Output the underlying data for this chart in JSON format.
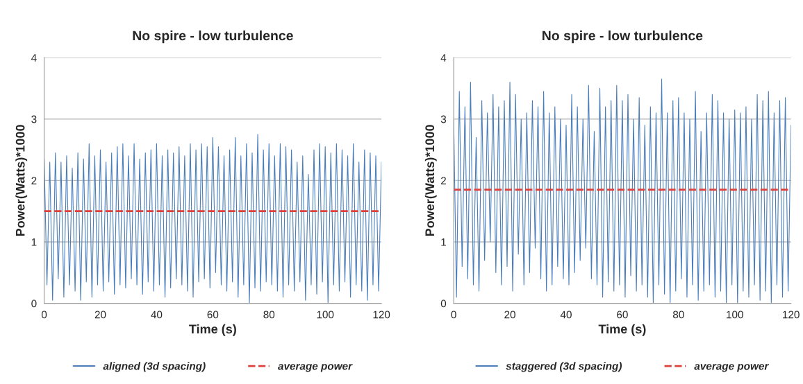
{
  "chart_data": [
    {
      "type": "line",
      "title": "No spire - low turbulence",
      "xlabel": "Time (s)",
      "ylabel": "Power(Watts)*1000",
      "xlim": [
        0,
        120
      ],
      "xticks": [
        0,
        20,
        40,
        60,
        80,
        100,
        120
      ],
      "ylim": [
        0,
        4
      ],
      "yticks": [
        0,
        1,
        2,
        3,
        4
      ],
      "grid": "y",
      "legend": "bottom",
      "series": [
        {
          "name": "aligned (3d spacing)",
          "color": "#4a7ebb",
          "x": [
            0,
            1,
            2,
            3,
            4,
            5,
            6,
            7,
            8,
            9,
            10,
            11,
            12,
            13,
            14,
            15,
            16,
            17,
            18,
            19,
            20,
            21,
            22,
            23,
            24,
            25,
            26,
            27,
            28,
            29,
            30,
            31,
            32,
            33,
            34,
            35,
            36,
            37,
            38,
            39,
            40,
            41,
            42,
            43,
            44,
            45,
            46,
            47,
            48,
            49,
            50,
            51,
            52,
            53,
            54,
            55,
            56,
            57,
            58,
            59,
            60,
            61,
            62,
            63,
            64,
            65,
            66,
            67,
            68,
            69,
            70,
            71,
            72,
            73,
            74,
            75,
            76,
            77,
            78,
            79,
            80,
            81,
            82,
            83,
            84,
            85,
            86,
            87,
            88,
            89,
            90,
            91,
            92,
            93,
            94,
            95,
            96,
            97,
            98,
            99,
            100,
            101,
            102,
            103,
            104,
            105,
            106,
            107,
            108,
            109,
            110,
            111,
            112,
            113,
            114,
            115,
            116,
            117,
            118,
            119,
            120
          ],
          "values": [
            2.35,
            0.3,
            2.3,
            0.05,
            2.45,
            0.4,
            2.3,
            0.1,
            2.4,
            0.3,
            2.2,
            0.2,
            2.45,
            0.05,
            2.35,
            0.35,
            2.6,
            0.1,
            2.4,
            0.3,
            2.5,
            0.2,
            2.3,
            0.35,
            2.45,
            0.15,
            2.55,
            0.3,
            2.6,
            0.25,
            2.4,
            0.4,
            2.6,
            0.3,
            2.35,
            0.15,
            2.45,
            0.35,
            2.5,
            0.2,
            2.6,
            0.3,
            2.4,
            0.1,
            2.5,
            0.25,
            2.45,
            0.4,
            2.55,
            0.3,
            2.4,
            0.2,
            2.6,
            0.1,
            2.5,
            0.35,
            2.6,
            0.4,
            2.55,
            0.25,
            2.7,
            0.5,
            2.55,
            0.3,
            2.4,
            0.2,
            2.5,
            0.35,
            2.7,
            0.1,
            2.4,
            0.3,
            2.6,
            0.0,
            2.45,
            0.25,
            2.75,
            0.2,
            2.5,
            0.35,
            2.6,
            0.3,
            2.4,
            0.2,
            2.6,
            0.1,
            2.55,
            0.3,
            2.5,
            0.2,
            2.3,
            0.35,
            2.4,
            0.05,
            2.1,
            0.3,
            2.5,
            0.15,
            2.6,
            0.35,
            2.55,
            0.0,
            2.45,
            0.3,
            2.6,
            0.2,
            2.5,
            0.35,
            2.4,
            0.1,
            2.6,
            0.3,
            2.3,
            0.2,
            2.5,
            0.05,
            2.45,
            0.3,
            2.4,
            0.2,
            2.3
          ]
        }
      ],
      "ref_lines": [
        {
          "axis": "y",
          "value": 1.5,
          "label": "average power",
          "color": "#e0403a",
          "line_style": "dashed"
        }
      ]
    },
    {
      "type": "line",
      "title": "No spire - low turbulence",
      "xlabel": "Time (s)",
      "ylabel": "Power(Watts)*1000",
      "xlim": [
        0,
        120
      ],
      "xticks": [
        0,
        20,
        40,
        60,
        80,
        100,
        120
      ],
      "ylim": [
        0,
        4
      ],
      "yticks": [
        0,
        1,
        2,
        3,
        4
      ],
      "grid": "y",
      "legend": "bottom",
      "series": [
        {
          "name": "staggered (3d spacing)",
          "color": "#4a7ebb",
          "x": [
            0,
            1,
            2,
            3,
            4,
            5,
            6,
            7,
            8,
            9,
            10,
            11,
            12,
            13,
            14,
            15,
            16,
            17,
            18,
            19,
            20,
            21,
            22,
            23,
            24,
            25,
            26,
            27,
            28,
            29,
            30,
            31,
            32,
            33,
            34,
            35,
            36,
            37,
            38,
            39,
            40,
            41,
            42,
            43,
            44,
            45,
            46,
            47,
            48,
            49,
            50,
            51,
            52,
            53,
            54,
            55,
            56,
            57,
            58,
            59,
            60,
            61,
            62,
            63,
            64,
            65,
            66,
            67,
            68,
            69,
            70,
            71,
            72,
            73,
            74,
            75,
            76,
            77,
            78,
            79,
            80,
            81,
            82,
            83,
            84,
            85,
            86,
            87,
            88,
            89,
            90,
            91,
            92,
            93,
            94,
            95,
            96,
            97,
            98,
            99,
            100,
            101,
            102,
            103,
            104,
            105,
            106,
            107,
            108,
            109,
            110,
            111,
            112,
            113,
            114,
            115,
            116,
            117,
            118,
            119,
            120
          ],
          "values": [
            3.0,
            0.1,
            3.45,
            0.6,
            3.2,
            0.4,
            3.6,
            0.3,
            2.7,
            0.2,
            3.3,
            0.7,
            3.1,
            1.0,
            3.4,
            0.5,
            3.2,
            0.3,
            3.3,
            0.6,
            3.6,
            0.2,
            3.4,
            0.8,
            3.0,
            0.3,
            3.1,
            0.5,
            3.3,
            0.9,
            3.2,
            0.4,
            3.45,
            0.2,
            3.1,
            0.3,
            3.2,
            0.6,
            3.0,
            0.4,
            2.9,
            0.3,
            3.4,
            0.5,
            3.2,
            0.7,
            3.0,
            0.9,
            3.55,
            0.4,
            2.8,
            0.3,
            3.5,
            0.1,
            3.2,
            0.35,
            3.3,
            0.2,
            3.55,
            0.3,
            3.3,
            0.1,
            3.4,
            0.45,
            3.0,
            0.2,
            3.35,
            0.3,
            2.9,
            0.1,
            3.2,
            0.0,
            3.1,
            0.3,
            3.65,
            0.15,
            3.1,
            0.0,
            3.3,
            0.2,
            3.35,
            0.4,
            3.1,
            0.1,
            3.0,
            0.3,
            3.45,
            0.05,
            2.8,
            0.2,
            3.1,
            0.3,
            3.4,
            0.1,
            3.3,
            0.2,
            3.1,
            0.0,
            3.0,
            0.3,
            3.15,
            0.0,
            3.1,
            0.2,
            3.2,
            0.1,
            3.0,
            0.3,
            3.4,
            0.05,
            3.3,
            0.2,
            3.45,
            0.0,
            3.1,
            0.3,
            3.3,
            0.1,
            3.35,
            0.2,
            2.9
          ]
        }
      ],
      "ref_lines": [
        {
          "axis": "y",
          "value": 1.85,
          "label": "average power",
          "color": "#e0403a",
          "line_style": "dashed"
        }
      ]
    }
  ]
}
